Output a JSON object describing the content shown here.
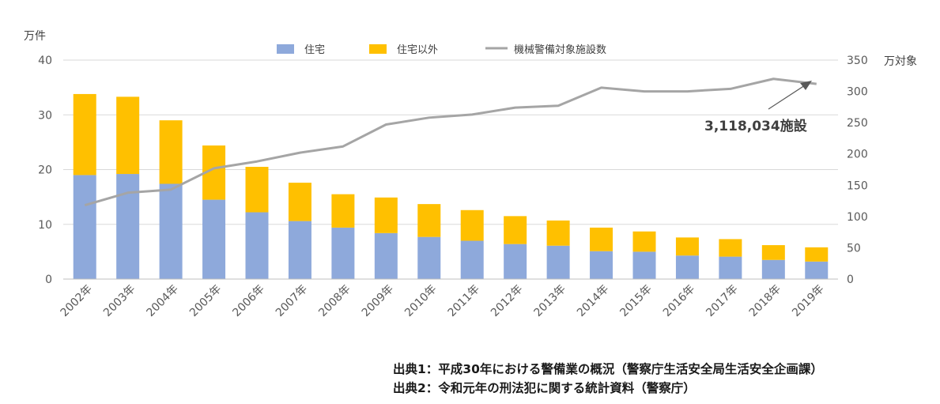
{
  "chart_data": {
    "type": "bar",
    "stacked": true,
    "categories": [
      "2002年",
      "2003年",
      "2004年",
      "2005年",
      "2006年",
      "2007年",
      "2008年",
      "2009年",
      "2010年",
      "2011年",
      "2012年",
      "2013年",
      "2014年",
      "2015年",
      "2016年",
      "2017年",
      "2018年",
      "2019年"
    ],
    "series": [
      {
        "name": "住宅",
        "type": "bar",
        "axis": "left",
        "color": "#8EA9DB",
        "values": [
          19.0,
          19.2,
          17.4,
          14.5,
          12.2,
          10.6,
          9.4,
          8.4,
          7.7,
          7.0,
          6.4,
          6.1,
          5.1,
          5.0,
          4.3,
          4.1,
          3.5,
          3.2
        ]
      },
      {
        "name": "住宅以外",
        "type": "bar",
        "axis": "left",
        "color": "#FFC000",
        "values": [
          14.8,
          14.1,
          11.6,
          9.9,
          8.3,
          7.0,
          6.1,
          6.5,
          6.0,
          5.6,
          5.1,
          4.6,
          4.3,
          3.7,
          3.3,
          3.2,
          2.7,
          2.6
        ]
      },
      {
        "name": "機械警備対象施設数",
        "type": "line",
        "axis": "right",
        "color": "#A5A5A5",
        "values": [
          118,
          138,
          143,
          177,
          188,
          202,
          212,
          247,
          258,
          263,
          274,
          277,
          306,
          300,
          300,
          304,
          320,
          312
        ]
      }
    ],
    "y_left": {
      "unit": "万件",
      "ylim": [
        0,
        40
      ],
      "ticks": [
        "0",
        "10",
        "20",
        "30",
        "40"
      ]
    },
    "y_right": {
      "unit": "万対象",
      "ylim": [
        0,
        350
      ],
      "ticks": [
        "0",
        "50",
        "100",
        "150",
        "200",
        "250",
        "300",
        "350"
      ]
    },
    "grid": true,
    "legend": "top",
    "annotation": {
      "text": "3,118,034施設",
      "target_index": 17
    }
  },
  "sources": [
    "出典1：平成30年における警備業の概況（警察庁生活安全局生活安全企画課）",
    "出典2：令和元年の刑法犯に関する統計資料（警察庁）"
  ]
}
